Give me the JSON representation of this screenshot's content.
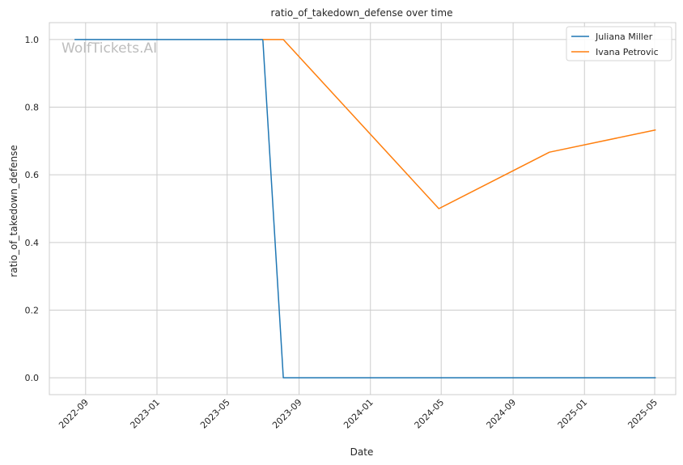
{
  "watermark": "WolfTickets.AI",
  "chart_data": {
    "type": "line",
    "title": "ratio_of_takedown_defense over time",
    "xlabel": "Date",
    "ylabel": "ratio_of_takedown_defense",
    "grid": true,
    "legend_position": "top-right",
    "xlim": [
      "2022-07-01",
      "2025-06-06"
    ],
    "ylim": [
      -0.05,
      1.05
    ],
    "x_ticks": [
      "2022-09",
      "2023-01",
      "2023-05",
      "2023-09",
      "2024-01",
      "2024-05",
      "2024-09",
      "2025-01",
      "2025-05"
    ],
    "y_ticks": [
      "0.0",
      "0.2",
      "0.4",
      "0.6",
      "0.8",
      "1.0"
    ],
    "series": [
      {
        "name": "Juliana Miller",
        "color": "#1f77b4",
        "x": [
          "2022-08-13",
          "2023-07-01",
          "2023-08-05",
          "2025-05-03"
        ],
        "y": [
          1.0,
          1.0,
          0.0,
          0.0
        ]
      },
      {
        "name": "Ivana Petrovic",
        "color": "#ff7f0e",
        "x": [
          "2023-07-01",
          "2023-08-05",
          "2024-04-27",
          "2024-11-02",
          "2025-05-03"
        ],
        "y": [
          1.0,
          1.0,
          0.5,
          0.667,
          0.733
        ]
      }
    ]
  }
}
